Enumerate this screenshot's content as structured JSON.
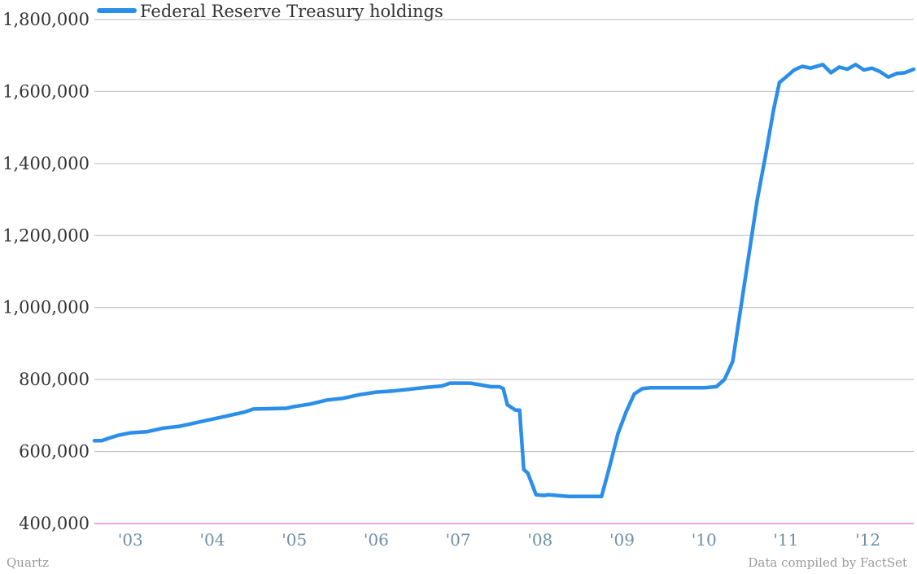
{
  "chart_data": {
    "type": "line",
    "title": "",
    "xlabel": "",
    "ylabel": "",
    "ylim": [
      400000,
      1800000
    ],
    "yticks": [
      400000,
      600000,
      800000,
      1000000,
      1200000,
      1400000,
      1600000,
      1800000
    ],
    "ytick_labels": [
      "400,000",
      "600,000",
      "800,000",
      "1,000,000",
      "1,200,000",
      "1,400,000",
      "1,600,000",
      "1,800,000"
    ],
    "xlim": [
      2002.56,
      2012.56
    ],
    "xticks": [
      2003,
      2004,
      2005,
      2006,
      2007,
      2008,
      2009,
      2010,
      2011,
      2012
    ],
    "xtick_labels": [
      "'03",
      "'04",
      "'05",
      "'06",
      "'07",
      "'08",
      "'09",
      "'10",
      "'11",
      "'12"
    ],
    "grid": "horizontal",
    "legend_position": "top-left",
    "series": [
      {
        "name": "Federal Reserve Treasury holdings",
        "color": "#2b8ee8",
        "x": [
          2002.56,
          2002.65,
          2002.75,
          2002.85,
          2003.0,
          2003.2,
          2003.4,
          2003.6,
          2003.8,
          2004.0,
          2004.2,
          2004.4,
          2004.5,
          2004.9,
          2005.0,
          2005.2,
          2005.4,
          2005.6,
          2005.8,
          2006.0,
          2006.2,
          2006.4,
          2006.6,
          2006.8,
          2006.9,
          2007.15,
          2007.4,
          2007.5,
          2007.55,
          2007.6,
          2007.7,
          2007.75,
          2007.8,
          2007.85,
          2007.95,
          2008.05,
          2008.1,
          2008.2,
          2008.35,
          2008.5,
          2008.7,
          2008.75,
          2008.85,
          2008.95,
          2009.05,
          2009.15,
          2009.25,
          2009.35,
          2009.5,
          2009.8,
          2010.0,
          2010.15,
          2010.25,
          2010.35,
          2010.45,
          2010.55,
          2010.65,
          2010.75,
          2010.85,
          2010.92,
          2011.0,
          2011.1,
          2011.2,
          2011.3,
          2011.45,
          2011.55,
          2011.65,
          2011.75,
          2011.85,
          2011.95,
          2012.05,
          2012.15,
          2012.25,
          2012.35,
          2012.45,
          2012.56
        ],
        "y": [
          630000,
          630000,
          638000,
          645000,
          652000,
          655000,
          665000,
          670000,
          680000,
          690000,
          700000,
          710000,
          718000,
          720000,
          725000,
          732000,
          743000,
          748000,
          758000,
          765000,
          768000,
          773000,
          778000,
          782000,
          790000,
          790000,
          780000,
          780000,
          775000,
          730000,
          715000,
          715000,
          550000,
          540000,
          480000,
          478000,
          480000,
          478000,
          475000,
          475000,
          475000,
          475000,
          560000,
          650000,
          710000,
          760000,
          775000,
          777000,
          777000,
          777000,
          777000,
          780000,
          800000,
          850000,
          1000000,
          1150000,
          1300000,
          1420000,
          1550000,
          1625000,
          1640000,
          1660000,
          1670000,
          1665000,
          1675000,
          1652000,
          1668000,
          1662000,
          1675000,
          1660000,
          1665000,
          1655000,
          1640000,
          1650000,
          1652000,
          1662000
        ]
      }
    ]
  },
  "footer": {
    "left": "Quartz",
    "right": "Data compiled by FactSet"
  }
}
